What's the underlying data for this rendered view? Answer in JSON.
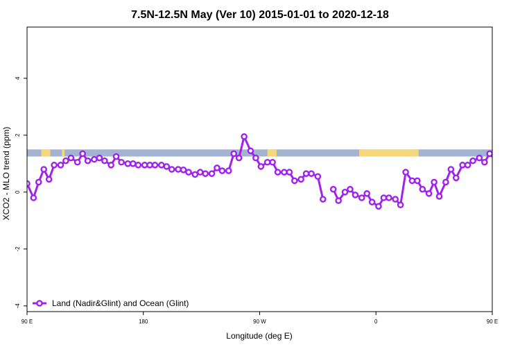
{
  "chart_data": {
    "type": "line",
    "title": "7.5N-12.5N May (Ver 10)   2015-01-01 to 2020-12-18",
    "xlabel": "Longitude (deg E)",
    "ylabel": "XCO2 - MLO trend (ppm)",
    "xlim": [
      90,
      450
    ],
    "ylim": [
      -4.2,
      5.8
    ],
    "xticks": [
      {
        "value": 90,
        "label": "90 E"
      },
      {
        "value": 180,
        "label": "180"
      },
      {
        "value": 270,
        "label": "90 W"
      },
      {
        "value": 360,
        "label": "0"
      },
      {
        "value": 450,
        "label": "90 E"
      },
      {
        "value": 540,
        "label": "180"
      }
    ],
    "yticks": [
      {
        "value": -4,
        "label": "-4"
      },
      {
        "value": -2,
        "label": "-2"
      },
      {
        "value": 0,
        "label": "0"
      },
      {
        "value": 2,
        "label": "2"
      },
      {
        "value": 4,
        "label": "4"
      }
    ],
    "grid": false,
    "legend_position": "bottom-left",
    "land_ocean_strip": {
      "y_range": [
        1.25,
        1.5
      ],
      "ocean_color": "#a3b4d3",
      "land_color": "#f7d77c",
      "land_segments": [
        [
          101,
          108
        ],
        [
          117,
          119
        ],
        [
          278,
          283
        ],
        [
          276,
          283
        ],
        [
          347,
          393
        ],
        [
          465,
          471
        ],
        [
          481,
          487
        ],
        [
          508,
          512
        ]
      ]
    },
    "series": [
      {
        "name": "Land (Nadir&Glint) and Ocean (Glint)",
        "color": "#a020f0",
        "segments": [
          [
            [
              90,
              0.3
            ],
            [
              95,
              -0.2
            ],
            [
              99,
              0.35
            ],
            [
              103,
              0.8
            ],
            [
              107,
              0.45
            ],
            [
              111,
              0.95
            ],
            [
              116,
              0.95
            ],
            [
              120,
              1.1
            ],
            [
              124,
              1.2
            ],
            [
              129,
              1.05
            ],
            [
              133,
              1.35
            ],
            [
              137,
              1.1
            ],
            [
              142,
              1.15
            ],
            [
              146,
              1.2
            ],
            [
              150,
              1.1
            ],
            [
              155,
              0.95
            ],
            [
              159,
              1.25
            ],
            [
              163,
              1.05
            ],
            [
              168,
              1.0
            ],
            [
              172,
              1.0
            ],
            [
              176,
              0.95
            ],
            [
              181,
              0.95
            ],
            [
              185,
              0.95
            ],
            [
              189,
              0.95
            ],
            [
              194,
              0.95
            ],
            [
              198,
              0.9
            ],
            [
              202,
              0.8
            ],
            [
              207,
              0.8
            ],
            [
              211,
              0.78
            ],
            [
              215,
              0.7
            ],
            [
              220,
              0.62
            ],
            [
              224,
              0.7
            ],
            [
              228,
              0.65
            ],
            [
              233,
              0.65
            ],
            [
              237,
              0.85
            ],
            [
              241,
              0.75
            ],
            [
              246,
              0.75
            ],
            [
              250,
              1.35
            ],
            [
              254,
              1.2
            ],
            [
              258,
              1.95
            ],
            [
              263,
              1.45
            ],
            [
              267,
              1.2
            ],
            [
              271,
              0.9
            ],
            [
              276,
              1.05
            ],
            [
              280,
              1.05
            ],
            [
              284,
              0.7
            ],
            [
              289,
              0.7
            ],
            [
              293,
              0.7
            ],
            [
              297,
              0.4
            ],
            [
              302,
              0.45
            ],
            [
              306,
              0.65
            ],
            [
              310,
              0.65
            ],
            [
              315,
              0.55
            ],
            [
              319,
              -0.25
            ]
          ],
          [
            [
              327,
              0.1
            ],
            [
              331,
              -0.3
            ],
            [
              336,
              0.0
            ],
            [
              340,
              0.1
            ],
            [
              344,
              -0.1
            ],
            [
              349,
              -0.2
            ],
            [
              353,
              -0.05
            ],
            [
              357,
              -0.35
            ],
            [
              362,
              -0.5
            ],
            [
              366,
              -0.2
            ],
            [
              370,
              -0.2
            ],
            [
              375,
              -0.25
            ],
            [
              379,
              -0.45
            ],
            [
              383,
              0.7
            ],
            [
              388,
              0.4
            ],
            [
              392,
              0.4
            ],
            [
              396,
              0.1
            ],
            [
              401,
              -0.05
            ],
            [
              405,
              0.35
            ],
            [
              409,
              -0.15
            ],
            [
              414,
              0.35
            ],
            [
              418,
              0.8
            ],
            [
              422,
              0.5
            ],
            [
              427,
              0.95
            ],
            [
              431,
              0.95
            ],
            [
              435,
              1.1
            ],
            [
              440,
              1.2
            ],
            [
              444,
              1.05
            ],
            [
              448,
              1.35
            ],
            [
              453,
              1.1
            ],
            [
              457,
              1.1
            ],
            [
              461,
              1.2
            ],
            [
              466,
              1.1
            ],
            [
              470,
              0.95
            ],
            [
              474,
              1.25
            ],
            [
              479,
              1.05
            ]
          ]
        ]
      }
    ]
  }
}
